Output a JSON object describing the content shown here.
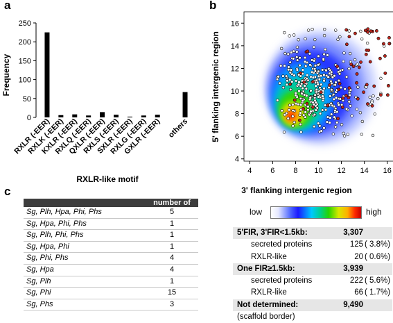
{
  "panels": {
    "a": "a",
    "b": "b",
    "c": "c"
  },
  "chart_data": [
    {
      "type": "bar",
      "xlabel": "RXLR-like motif",
      "ylabel": "Frequency",
      "ylim": [
        0,
        250
      ],
      "yticks": [
        0,
        50,
        100,
        150,
        200,
        250
      ],
      "categories": [
        "RXLR (-EER)",
        "RXLK (-EER)",
        "KXLR (-EER)",
        "RXLQ (-EER)",
        "QXLR (-EER)",
        "RXLS (-EER)",
        "SXLR (-EER)",
        "RXLG (-EER)",
        "GXLR (-EER)",
        "",
        "others"
      ],
      "values": [
        225,
        6,
        8,
        5,
        14,
        7,
        2,
        5,
        7,
        0,
        67
      ],
      "colors": {
        "bar": "#000000"
      }
    },
    {
      "type": "heatmap",
      "xlabel": "3' flanking intergenic region",
      "ylabel": "5' flanking intergenic region",
      "xlim": [
        3.5,
        16.8
      ],
      "ylim": [
        3.8,
        17
      ],
      "xticks": [
        4,
        6,
        8,
        10,
        12,
        14,
        16
      ],
      "yticks": [
        4,
        6,
        8,
        10,
        12,
        14,
        16
      ],
      "colorbar": {
        "low": "low",
        "high": "high"
      },
      "density_peak": [
        7.6,
        7.8
      ],
      "points_description_counts": {
        "white": 360,
        "red": 60
      },
      "colors": {
        "white_point": "#ffffff",
        "red_point": "#b8261c",
        "point_edge": "#000000"
      }
    }
  ],
  "table": {
    "header": [
      "",
      "number of groups"
    ],
    "rows": [
      [
        "Sg, Plh, Hpa, Phi, Phs",
        "5"
      ],
      [
        "Sg, Hpa, Phi, Phs",
        "1"
      ],
      [
        "Sg, Plh, Phi, Phs",
        "1"
      ],
      [
        "Sg, Hpa, Phi",
        "1"
      ],
      [
        "Sg, Phi, Phs",
        "4"
      ],
      [
        "Sg, Hpa",
        "4"
      ],
      [
        "Sg, Plh",
        "1"
      ],
      [
        "Sg, Phi",
        "15"
      ],
      [
        "Sg, Phs",
        "3"
      ]
    ]
  },
  "stats": [
    {
      "label": "5'FIR, 3'FIR<1.5kb:",
      "value": "3,307",
      "pct": "",
      "kind": "shade"
    },
    {
      "label": "secreted proteins",
      "value": "125",
      "pct": "( 3.8%)",
      "kind": "sub"
    },
    {
      "label": "RXLR-like",
      "value": "20",
      "pct": "( 0.6%)",
      "kind": "sub"
    },
    {
      "label": "One FIR≥1.5kb:",
      "value": "3,939",
      "pct": "",
      "kind": "shade"
    },
    {
      "label": "secreted proteins",
      "value": "222",
      "pct": "( 5.6%)",
      "kind": "sub"
    },
    {
      "label": "RXLR-like",
      "value": "66",
      "pct": "( 1.7%)",
      "kind": "sub"
    },
    {
      "label": "Not determined:",
      "value": "9,490",
      "pct": "",
      "kind": "shade"
    },
    {
      "label": "(scaffold border)",
      "value": "",
      "pct": "",
      "kind": "note"
    }
  ]
}
